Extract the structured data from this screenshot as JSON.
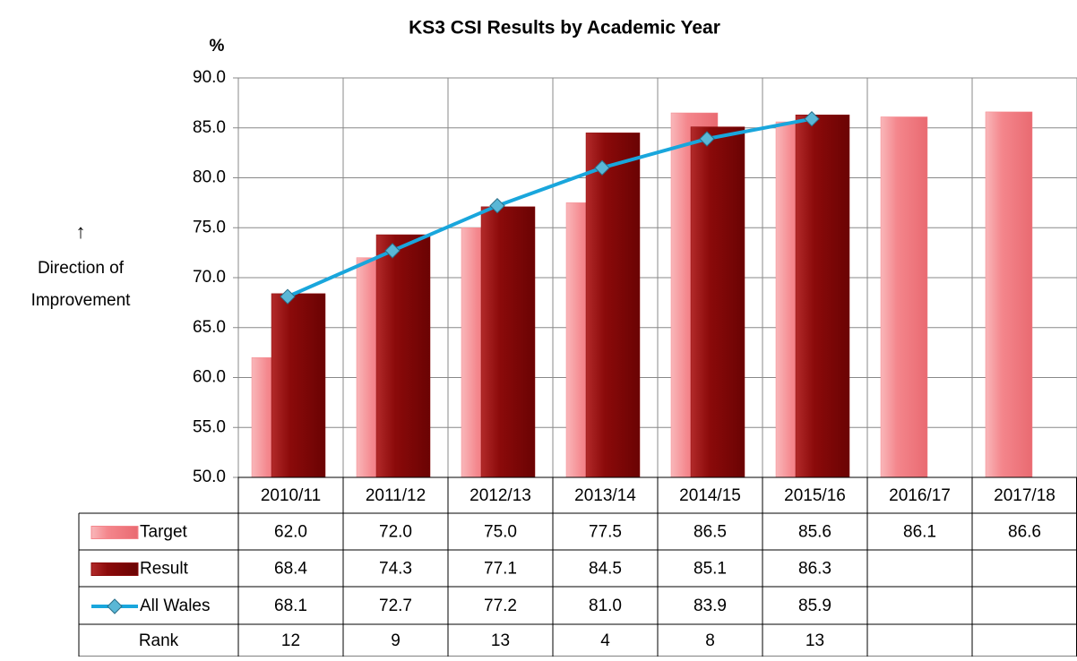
{
  "chart_data": {
    "type": "bar",
    "title": "KS3 CSI Results by Academic Year",
    "y_label": "%",
    "annotation": [
      "↑",
      "Direction of",
      "Improvement"
    ],
    "categories": [
      "2010/11",
      "2011/12",
      "2012/13",
      "2013/14",
      "2014/15",
      "2015/16",
      "2016/17",
      "2017/18"
    ],
    "series": [
      {
        "name": "Target",
        "type": "bar",
        "color": "#f4868c",
        "values": [
          62.0,
          72.0,
          75.0,
          77.5,
          86.5,
          85.6,
          86.1,
          86.6
        ],
        "value_labels": [
          "62.0",
          "72.0",
          "75.0",
          "77.5",
          "86.5",
          "85.6",
          "86.1",
          "86.6"
        ]
      },
      {
        "name": "Result",
        "type": "bar",
        "color": "#8b0a0a",
        "values": [
          68.4,
          74.3,
          77.1,
          84.5,
          85.1,
          86.3,
          null,
          null
        ],
        "value_labels": [
          "68.4",
          "74.3",
          "77.1",
          "84.5",
          "85.1",
          "86.3",
          null,
          null
        ]
      },
      {
        "name": "All Wales",
        "type": "line",
        "color": "#19a6dc",
        "values": [
          68.1,
          72.7,
          77.2,
          81.0,
          83.9,
          85.9,
          null,
          null
        ],
        "value_labels": [
          "68.1",
          "72.7",
          "77.2",
          "81.0",
          "83.9",
          "85.9",
          null,
          null
        ]
      }
    ],
    "rank": {
      "name": "Rank",
      "values": [
        12,
        9,
        13,
        4,
        8,
        13,
        null,
        null
      ]
    },
    "ylim": [
      50,
      90
    ],
    "yticks": [
      {
        "value": 50,
        "label": "50.0"
      },
      {
        "value": 55,
        "label": "55.0"
      },
      {
        "value": 60,
        "label": "60.0"
      },
      {
        "value": 65,
        "label": "65.0"
      },
      {
        "value": 70,
        "label": "70.0"
      },
      {
        "value": 75,
        "label": "75.0"
      },
      {
        "value": 80,
        "label": "80.0"
      },
      {
        "value": 85,
        "label": "85.0"
      },
      {
        "value": 90,
        "label": "90.0"
      }
    ],
    "grid": true
  }
}
